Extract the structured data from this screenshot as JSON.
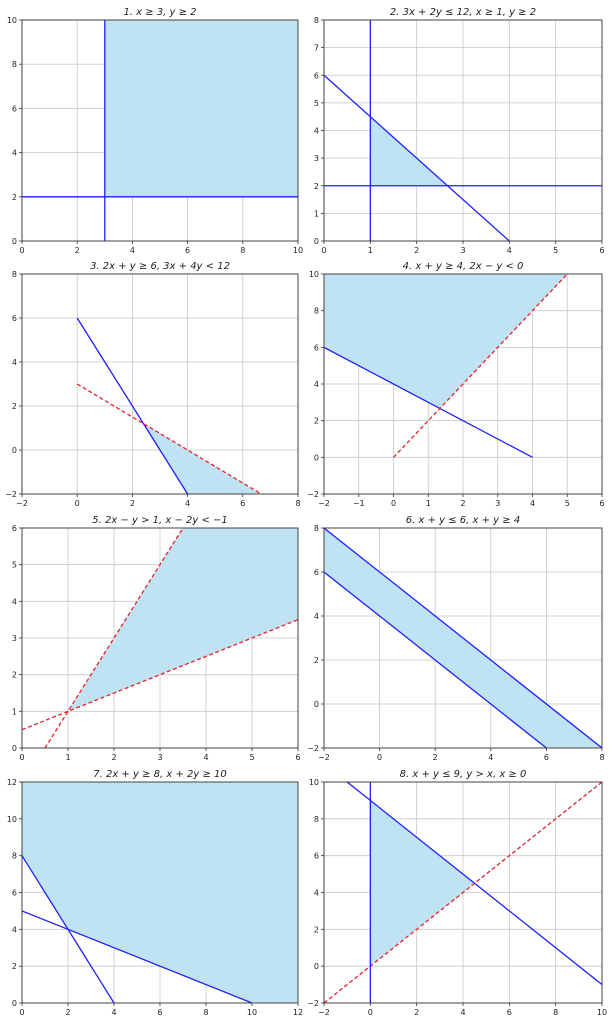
{
  "chart_data": [
    {
      "type": "area",
      "title": "1. x ≥ 3, y ≥ 2",
      "xlim": [
        0,
        10
      ],
      "ylim": [
        0,
        10
      ],
      "xticks": [
        0,
        2,
        4,
        6,
        8,
        10
      ],
      "yticks": [
        0,
        2,
        4,
        6,
        8,
        10
      ],
      "grid": true,
      "lines": [
        {
          "points": [
            [
              3,
              0
            ],
            [
              3,
              10
            ]
          ],
          "style": "solid",
          "color": "#1f1fff"
        },
        {
          "points": [
            [
              0,
              2
            ],
            [
              10,
              2
            ]
          ],
          "style": "solid",
          "color": "#1f1fff"
        }
      ],
      "region": [
        [
          3,
          2
        ],
        [
          10,
          2
        ],
        [
          10,
          10
        ],
        [
          3,
          10
        ]
      ]
    },
    {
      "type": "area",
      "title": "2. 3x + 2y ≤ 12, x ≥ 1, y ≥ 2",
      "xlim": [
        0,
        6
      ],
      "ylim": [
        0,
        8
      ],
      "xticks": [
        0,
        1,
        2,
        3,
        4,
        5,
        6
      ],
      "yticks": [
        0,
        1,
        2,
        3,
        4,
        5,
        6,
        7,
        8
      ],
      "grid": true,
      "lines": [
        {
          "points": [
            [
              0,
              6
            ],
            [
              4,
              0
            ]
          ],
          "style": "solid",
          "color": "#1f1fff"
        },
        {
          "points": [
            [
              1,
              0
            ],
            [
              1,
              8
            ]
          ],
          "style": "solid",
          "color": "#1f1fff"
        },
        {
          "points": [
            [
              0,
              2
            ],
            [
              6,
              2
            ]
          ],
          "style": "solid",
          "color": "#1f1fff"
        }
      ],
      "region": [
        [
          1,
          2
        ],
        [
          2.667,
          2
        ],
        [
          1,
          4.5
        ]
      ]
    },
    {
      "type": "area",
      "title": "3. 2x + y ≥ 6, 3x + 4y < 12",
      "xlim": [
        -2,
        8
      ],
      "ylim": [
        -2,
        8
      ],
      "xticks": [
        -2,
        0,
        2,
        4,
        6,
        8
      ],
      "yticks": [
        -2,
        0,
        2,
        4,
        6,
        8
      ],
      "grid": true,
      "lines": [
        {
          "points": [
            [
              0,
              6
            ],
            [
              4,
              -2
            ]
          ],
          "style": "solid",
          "color": "#1f1fff"
        },
        {
          "points": [
            [
              0,
              3
            ],
            [
              6.667,
              -2
            ]
          ],
          "style": "dashed",
          "color": "#e8202a"
        }
      ],
      "region": [
        [
          2.4,
          1.2
        ],
        [
          6.667,
          -2
        ],
        [
          4,
          -2
        ]
      ]
    },
    {
      "type": "area",
      "title": "4. x + y ≥ 4, 2x − y < 0",
      "xlim": [
        -2,
        6
      ],
      "ylim": [
        -2,
        10
      ],
      "xticks": [
        -2,
        -1,
        0,
        1,
        2,
        3,
        4,
        5,
        6
      ],
      "yticks": [
        -2,
        0,
        2,
        4,
        6,
        8,
        10
      ],
      "grid": true,
      "lines": [
        {
          "points": [
            [
              -2,
              6
            ],
            [
              4,
              0
            ]
          ],
          "style": "solid",
          "color": "#1f1fff"
        },
        {
          "points": [
            [
              0,
              0
            ],
            [
              5,
              10
            ]
          ],
          "style": "dashed",
          "color": "#e8202a"
        }
      ],
      "region": [
        [
          -2,
          6
        ],
        [
          1.333,
          2.667
        ],
        [
          5,
          10
        ],
        [
          -2,
          10
        ]
      ]
    },
    {
      "type": "area",
      "title": "5. 2x − y > 1, x − 2y < −1",
      "xlim": [
        0,
        6
      ],
      "ylim": [
        0,
        6
      ],
      "xticks": [
        0,
        1,
        2,
        3,
        4,
        5,
        6
      ],
      "yticks": [
        0,
        1,
        2,
        3,
        4,
        5,
        6
      ],
      "grid": true,
      "lines": [
        {
          "points": [
            [
              0.5,
              0
            ],
            [
              3.5,
              6
            ]
          ],
          "style": "dashed",
          "color": "#e8202a"
        },
        {
          "points": [
            [
              0,
              0.5
            ],
            [
              6,
              3.5
            ]
          ],
          "style": "dashed",
          "color": "#e8202a"
        }
      ],
      "region": [
        [
          1,
          1
        ],
        [
          6,
          3.5
        ],
        [
          6,
          6
        ],
        [
          3.5,
          6
        ]
      ]
    },
    {
      "type": "area",
      "title": "6. x + y ≤ 6, x + y ≥ 4",
      "xlim": [
        -2,
        8
      ],
      "ylim": [
        -2,
        8
      ],
      "xticks": [
        -2,
        0,
        2,
        4,
        6,
        8
      ],
      "yticks": [
        -2,
        0,
        2,
        4,
        6,
        8
      ],
      "grid": true,
      "lines": [
        {
          "points": [
            [
              -2,
              8
            ],
            [
              8,
              -2
            ]
          ],
          "style": "solid",
          "color": "#1f1fff"
        },
        {
          "points": [
            [
              -2,
              6
            ],
            [
              6,
              -2
            ]
          ],
          "style": "solid",
          "color": "#1f1fff"
        }
      ],
      "region": [
        [
          -2,
          8
        ],
        [
          8,
          -2
        ],
        [
          6,
          -2
        ],
        [
          -2,
          6
        ]
      ]
    },
    {
      "type": "area",
      "title": "7. 2x + y ≥ 8, x + 2y ≥ 10",
      "xlim": [
        0,
        12
      ],
      "ylim": [
        0,
        12
      ],
      "xticks": [
        0,
        2,
        4,
        6,
        8,
        10,
        12
      ],
      "yticks": [
        0,
        2,
        4,
        6,
        8,
        10,
        12
      ],
      "grid": true,
      "lines": [
        {
          "points": [
            [
              0,
              8
            ],
            [
              4,
              0
            ]
          ],
          "style": "solid",
          "color": "#1f1fff"
        },
        {
          "points": [
            [
              0,
              5
            ],
            [
              10,
              0
            ]
          ],
          "style": "solid",
          "color": "#1f1fff"
        }
      ],
      "region": [
        [
          0,
          12
        ],
        [
          0,
          8
        ],
        [
          2,
          4
        ],
        [
          10,
          0
        ],
        [
          12,
          0
        ],
        [
          12,
          12
        ]
      ]
    },
    {
      "type": "area",
      "title": "8. x + y ≤ 9, y > x, x ≥ 0",
      "xlim": [
        -2,
        10
      ],
      "ylim": [
        -2,
        10
      ],
      "xticks": [
        -2,
        0,
        2,
        4,
        6,
        8,
        10
      ],
      "yticks": [
        -2,
        0,
        2,
        4,
        6,
        8,
        10
      ],
      "grid": true,
      "lines": [
        {
          "points": [
            [
              -1,
              10
            ],
            [
              10,
              -1
            ]
          ],
          "style": "solid",
          "color": "#1f1fff"
        },
        {
          "points": [
            [
              -2,
              -2
            ],
            [
              10,
              10
            ]
          ],
          "style": "dashed",
          "color": "#e8202a"
        },
        {
          "points": [
            [
              0,
              -2
            ],
            [
              0,
              10
            ]
          ],
          "style": "solid",
          "color": "#1f1fff"
        }
      ],
      "region": [
        [
          0,
          0
        ],
        [
          4.5,
          4.5
        ],
        [
          0,
          9
        ]
      ]
    }
  ],
  "colors": {
    "fill": "#bfe3f2",
    "grid": "#c8c8c8",
    "axes": "#333333",
    "text": "#222222"
  }
}
